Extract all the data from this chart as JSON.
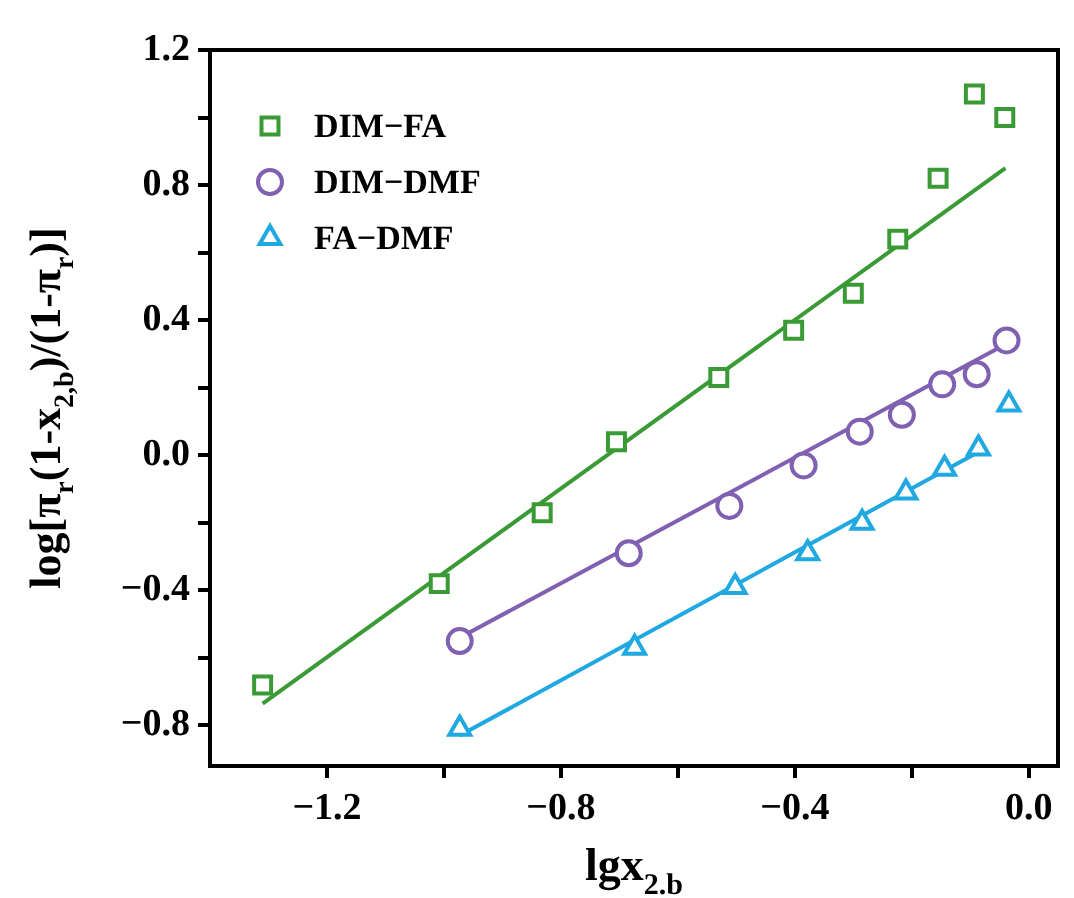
{
  "chart_data": {
    "type": "scatter",
    "xlabel": "lgx$_{2.b}$",
    "ylabel": "log[π$_{r}$(1-x$_{2,b}$)/(1-π$_{r}$)]",
    "xlim": [
      -1.4,
      0.05
    ],
    "ylim": [
      -0.92,
      1.2
    ],
    "xticks": [
      {
        "value": -1.2,
        "label": "−1.2"
      },
      {
        "value": -1.0,
        "label": null
      },
      {
        "value": -0.8,
        "label": "−0.8"
      },
      {
        "value": -0.6,
        "label": null
      },
      {
        "value": -0.4,
        "label": "−0.4"
      },
      {
        "value": -0.2,
        "label": null
      },
      {
        "value": 0.0,
        "label": "0.0"
      }
    ],
    "yticks": [
      {
        "value": -0.8,
        "label": "−0.8"
      },
      {
        "value": -0.6,
        "label": null
      },
      {
        "value": -0.4,
        "label": "−0.4"
      },
      {
        "value": -0.2,
        "label": null
      },
      {
        "value": 0.0,
        "label": "0.0"
      },
      {
        "value": 0.2,
        "label": null
      },
      0.4,
      {
        "value": 0.6,
        "label": null
      },
      0.8,
      {
        "value": 1.0,
        "label": null
      },
      1.2
    ],
    "legend": "top left",
    "series": [
      {
        "name": "DIM−FA",
        "color": "#3a9a35",
        "marker": "square",
        "x": [
          -1.31,
          -1.008,
          -0.832,
          -0.705,
          -0.53,
          -0.402,
          -0.3,
          -0.224,
          -0.155,
          -0.093,
          -0.041
        ],
        "values": [
          -0.68,
          -0.38,
          -0.17,
          0.04,
          0.23,
          0.37,
          0.48,
          0.64,
          0.82,
          1.07,
          1.0
        ]
      },
      {
        "name": "DIM−DMF",
        "color": "#8060b0",
        "marker": "circle",
        "x": [
          -0.973,
          -0.684,
          -0.512,
          -0.385,
          -0.289,
          -0.217,
          -0.148,
          -0.089,
          -0.038
        ],
        "values": [
          -0.55,
          -0.29,
          -0.15,
          -0.03,
          0.07,
          0.12,
          0.21,
          0.24,
          0.34
        ]
      },
      {
        "name": "FA−DMF",
        "color": "#20a8e0",
        "marker": "triangle",
        "x": [
          -0.973,
          -0.674,
          -0.502,
          -0.378,
          -0.285,
          -0.21,
          -0.144,
          -0.086,
          -0.034
        ],
        "values": [
          -0.81,
          -0.57,
          -0.39,
          -0.29,
          -0.2,
          -0.11,
          -0.04,
          0.02,
          0.15
        ]
      },
      {
        "type": "line",
        "color": "#3a9a35",
        "marker": "none",
        "x": [
          -1.31,
          -0.04
        ],
        "values": [
          -0.735,
          0.85
        ]
      },
      {
        "type": "line",
        "color": "#8060b0",
        "marker": "none",
        "x": [
          -0.973,
          -0.038
        ],
        "values": [
          -0.54,
          0.33
        ]
      },
      {
        "type": "line",
        "color": "#20a8e0",
        "marker": "none",
        "x": [
          -0.973,
          -0.086
        ],
        "values": [
          -0.83,
          0.01
        ]
      }
    ]
  }
}
